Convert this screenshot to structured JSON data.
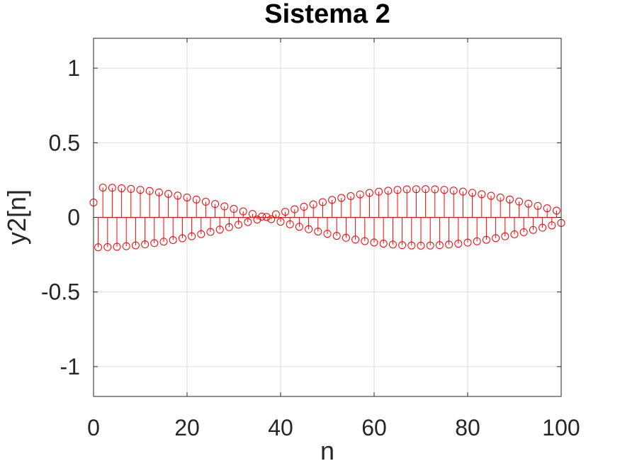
{
  "chart_data": {
    "type": "stem",
    "title": "Sistema 2",
    "xlabel": "n",
    "ylabel": "y2[n]",
    "xlim": [
      0,
      100
    ],
    "ylim": [
      -1.2,
      1.2
    ],
    "xticks": [
      "0",
      "20",
      "40",
      "60",
      "80",
      "100"
    ],
    "yticks": [
      "-1",
      "-0.5",
      "0",
      "0.5",
      "1"
    ],
    "grid": true,
    "color": "#ff0000",
    "series": [
      {
        "x": [
          0,
          1,
          2,
          3,
          4,
          5,
          6,
          7,
          8,
          9,
          10,
          11,
          12,
          13,
          14,
          15,
          16,
          17,
          18,
          19,
          20,
          21,
          22,
          23,
          24,
          25,
          26,
          27,
          28,
          29,
          30,
          31,
          32,
          33,
          34,
          35,
          36,
          37,
          38,
          39,
          40,
          41,
          42,
          43,
          44,
          45,
          46,
          47,
          48,
          49,
          50,
          51,
          52,
          53,
          54,
          55,
          56,
          57,
          58,
          59,
          60,
          61,
          62,
          63,
          64,
          65,
          66,
          67,
          68,
          69,
          70,
          71,
          72,
          73,
          74,
          75,
          76,
          77,
          78,
          79,
          80,
          81,
          82,
          83,
          84,
          85,
          86,
          87,
          88,
          89,
          90,
          91,
          92,
          93,
          94,
          95,
          96,
          97,
          98,
          99,
          100
        ],
        "y": [
          0.1,
          -0.2,
          0.1998,
          -0.1992,
          0.1982,
          -0.1969,
          0.1951,
          -0.193,
          0.1905,
          -0.1876,
          0.1844,
          -0.1807,
          0.1768,
          -0.1724,
          0.1677,
          -0.1627,
          0.1574,
          -0.1518,
          0.1459,
          -0.1397,
          0.1332,
          -0.1265,
          0.1195,
          -0.1123,
          0.105,
          -0.0974,
          0.0896,
          -0.0817,
          0.0736,
          -0.0654,
          0.057,
          -0.0486,
          0.0401,
          -0.0315,
          0.0229,
          -0.0142,
          0.0055,
          0.0031,
          -0.0118,
          0.0205,
          -0.0291,
          0.0377,
          -0.0462,
          0.0546,
          -0.0629,
          0.0711,
          -0.0792,
          0.0871,
          -0.0949,
          0.1024,
          -0.1098,
          0.1169,
          -0.1238,
          0.1304,
          -0.1368,
          0.1428,
          -0.1486,
          0.154,
          -0.1591,
          0.1638,
          -0.1681,
          0.1721,
          -0.1757,
          0.1788,
          -0.1816,
          0.184,
          -0.186,
          0.1875,
          -0.1886,
          0.1892,
          -0.1894,
          0.1893,
          -0.1886,
          0.1876,
          -0.1861,
          0.1842,
          -0.1819,
          0.1793,
          -0.1762,
          0.1727,
          -0.1689,
          0.1647,
          -0.1602,
          0.1553,
          -0.1501,
          0.1447,
          -0.1389,
          0.1329,
          -0.1266,
          0.12,
          -0.1133,
          0.1063,
          -0.0991,
          0.0918,
          -0.0843,
          0.0767,
          -0.069,
          0.0612,
          -0.0533,
          0.0454,
          -0.0374
        ]
      }
    ]
  }
}
